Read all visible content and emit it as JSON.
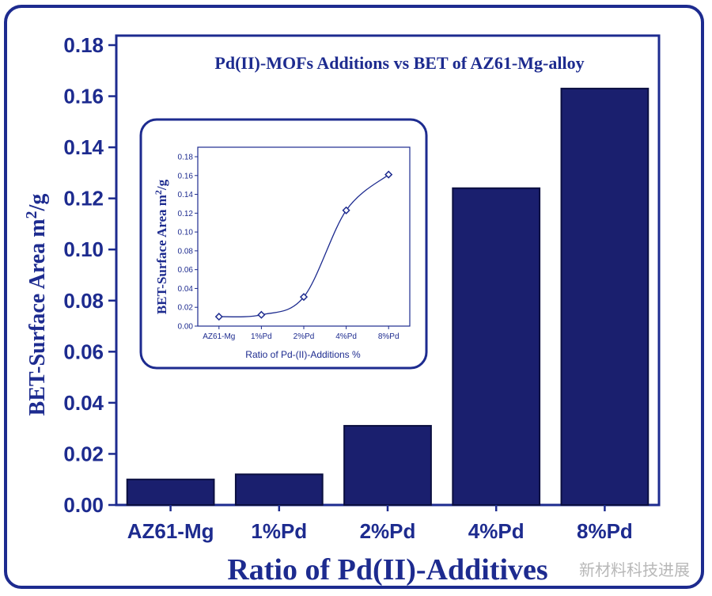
{
  "chart_data": {
    "type": "bar",
    "title": "Pd(II)-MOFs Additions vs BET of AZ61-Mg-alloy",
    "xlabel": "Ratio of Pd(II)-Additives",
    "ylabel_main": "BET-Surface Area  m",
    "ylabel_sup": "2",
    "ylabel_tail": "/g",
    "categories": [
      "AZ61-Mg",
      "1%Pd",
      "2%Pd",
      "4%Pd",
      "8%Pd"
    ],
    "values": [
      0.01,
      0.012,
      0.031,
      0.124,
      0.163
    ],
    "ylim": [
      0,
      0.18
    ],
    "yticks": [
      "0.00",
      "0.02",
      "0.04",
      "0.06",
      "0.08",
      "0.10",
      "0.12",
      "0.14",
      "0.16",
      "0.18"
    ],
    "bar_color": "#1a1f6e",
    "accent_color": "#1d2b8f",
    "inset": {
      "type": "line",
      "categories": [
        "AZ61-Mg",
        "1%Pd",
        "2%Pd",
        "4%Pd",
        "8%Pd"
      ],
      "values": [
        0.01,
        0.012,
        0.031,
        0.123,
        0.161
      ],
      "ylim": [
        0,
        0.18
      ],
      "yticks": [
        "0.00",
        "0.02",
        "0.04",
        "0.06",
        "0.08",
        "0.10",
        "0.12",
        "0.14",
        "0.16",
        "0.18"
      ],
      "xlabel": "Ratio of Pd-(II)-Additions %",
      "ylabel_main": "BET-Surface Area  m",
      "ylabel_sup": "2",
      "ylabel_tail": "/g"
    }
  },
  "watermark": "新材料科技进展"
}
